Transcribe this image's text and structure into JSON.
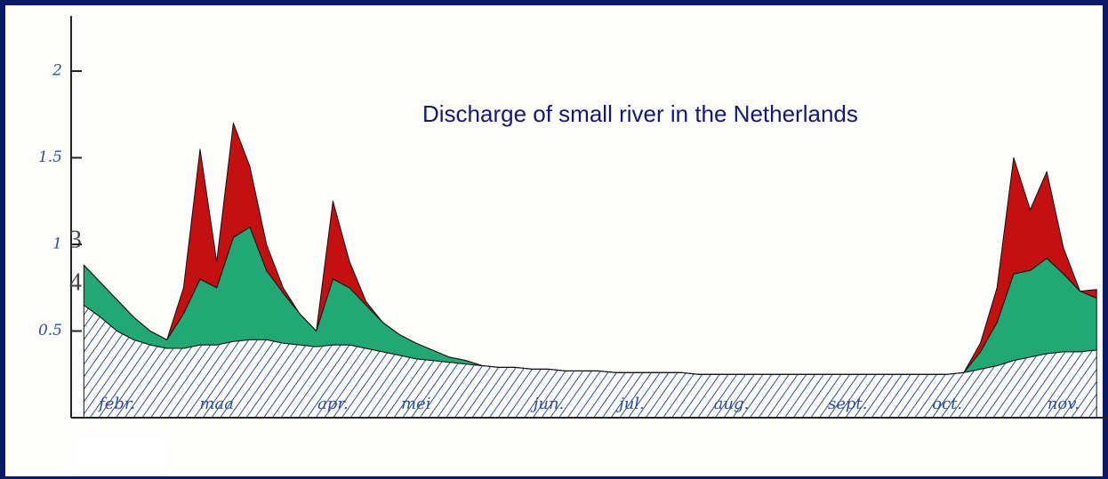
{
  "chart_data": {
    "type": "stacked-area",
    "title": "Discharge of small river in the Netherlands",
    "annotations": [
      "3",
      "4"
    ],
    "categories": [
      null,
      null,
      "febr.",
      null,
      null,
      null,
      null,
      null,
      "maa",
      null,
      null,
      null,
      null,
      null,
      null,
      "apr.",
      null,
      null,
      null,
      null,
      "mei",
      null,
      null,
      null,
      null,
      null,
      null,
      null,
      "jun.",
      null,
      null,
      null,
      null,
      "jul.",
      null,
      null,
      null,
      null,
      null,
      "aug.",
      null,
      null,
      null,
      null,
      null,
      null,
      "sept.",
      null,
      null,
      null,
      null,
      null,
      "oct.",
      null,
      null,
      null,
      null,
      null,
      null,
      "nov.",
      null,
      null
    ],
    "ylim": [
      0,
      2.3
    ],
    "yticks": [
      0.5,
      1,
      1.5,
      2
    ],
    "series": [
      {
        "color": "#2d4f9e",
        "hatched": true,
        "values": [
          0.65,
          0.58,
          0.5,
          0.45,
          0.42,
          0.4,
          0.4,
          0.42,
          0.42,
          0.44,
          0.45,
          0.45,
          0.43,
          0.42,
          0.41,
          0.42,
          0.42,
          0.4,
          0.38,
          0.36,
          0.34,
          0.33,
          0.32,
          0.31,
          0.3,
          0.29,
          0.29,
          0.28,
          0.28,
          0.27,
          0.27,
          0.27,
          0.26,
          0.26,
          0.26,
          0.26,
          0.26,
          0.25,
          0.25,
          0.25,
          0.25,
          0.25,
          0.25,
          0.25,
          0.25,
          0.25,
          0.25,
          0.25,
          0.25,
          0.25,
          0.25,
          0.25,
          0.25,
          0.26,
          0.28,
          0.3,
          0.33,
          0.35,
          0.37,
          0.38,
          0.38,
          0.39
        ]
      },
      {
        "color": "#22a874",
        "values": [
          0.23,
          0.2,
          0.18,
          0.13,
          0.08,
          0.05,
          0.2,
          0.38,
          0.33,
          0.6,
          0.65,
          0.4,
          0.29,
          0.18,
          0.09,
          0.38,
          0.33,
          0.25,
          0.17,
          0.12,
          0.09,
          0.06,
          0.03,
          0.02,
          0,
          0,
          0,
          0,
          0,
          0,
          0,
          0,
          0,
          0,
          0,
          0,
          0,
          0,
          0,
          0,
          0,
          0,
          0,
          0,
          0,
          0,
          0,
          0,
          0,
          0,
          0,
          0,
          0,
          0,
          0.1,
          0.25,
          0.5,
          0.5,
          0.55,
          0.45,
          0.35,
          0.3
        ]
      },
      {
        "color": "#c41010",
        "values": [
          0,
          0,
          0,
          0,
          0,
          0,
          0.15,
          0.75,
          0.15,
          0.66,
          0.35,
          0.15,
          0.03,
          0,
          0,
          0.45,
          0.15,
          0.02,
          0,
          0,
          0,
          0,
          0,
          0,
          0,
          0,
          0,
          0,
          0,
          0,
          0,
          0,
          0,
          0,
          0,
          0,
          0,
          0,
          0,
          0,
          0,
          0,
          0,
          0,
          0,
          0,
          0,
          0,
          0,
          0,
          0,
          0,
          0,
          0,
          0.05,
          0.2,
          0.67,
          0.35,
          0.5,
          0.15,
          0,
          0.05
        ]
      }
    ]
  }
}
